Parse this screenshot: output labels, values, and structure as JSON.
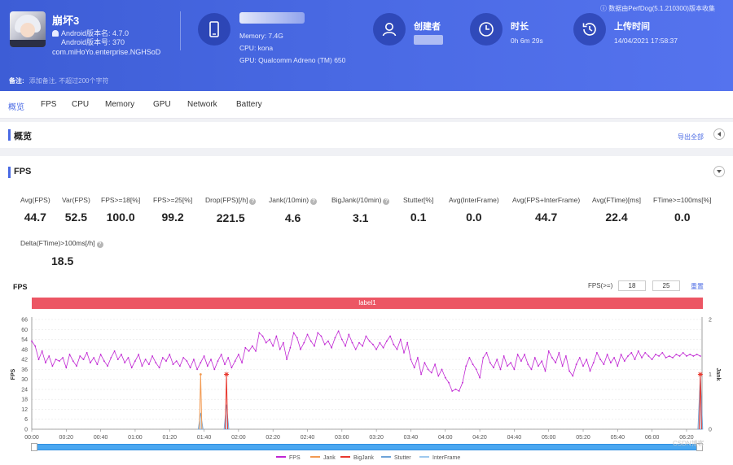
{
  "header": {
    "app": {
      "name": "崩坏3",
      "version_label": "Android版本名: 4.7.0",
      "build_label": "Android版本号: 370",
      "package": "com.miHoYo.enterprise.NGHSoD"
    },
    "device": {
      "memory": "Memory: 7.4G",
      "cpu": "CPU: kona",
      "gpu": "GPU: Qualcomm Adreno (TM) 650"
    },
    "creator": {
      "title": "创建者"
    },
    "duration": {
      "title": "时长",
      "value": "0h 6m 29s"
    },
    "upload": {
      "title": "上传时间",
      "value": "14/04/2021 17:58:37"
    },
    "perfdog_note": "数据由PerfDog(5.1.210300)版本收集",
    "remark_label": "备注:",
    "remark_placeholder": "添加备注, 不超过200个字符"
  },
  "tabs": [
    "概览",
    "FPS",
    "CPU",
    "Memory",
    "GPU",
    "Network",
    "Battery"
  ],
  "active_tab": 0,
  "overview": {
    "title": "概览",
    "export_label": "导出全部"
  },
  "fps_section": {
    "title": "FPS",
    "stats": [
      {
        "label": "Avg(FPS)",
        "value": "44.7",
        "help": false
      },
      {
        "label": "Var(FPS)",
        "value": "52.5",
        "help": false
      },
      {
        "label": "FPS>=18[%]",
        "value": "100.0",
        "help": false
      },
      {
        "label": "FPS>=25[%]",
        "value": "99.2",
        "help": false
      },
      {
        "label": "Drop(FPS)[/h]",
        "value": "221.5",
        "help": true
      },
      {
        "label": "Jank(/10min)",
        "value": "4.6",
        "help": true
      },
      {
        "label": "BigJank(/10min)",
        "value": "3.1",
        "help": true
      },
      {
        "label": "Stutter[%]",
        "value": "0.1",
        "help": false
      },
      {
        "label": "Avg(InterFrame)",
        "value": "0.0",
        "help": false
      },
      {
        "label": "Avg(FPS+InterFrame)",
        "value": "44.7",
        "help": false
      },
      {
        "label": "Avg(FTime)[ms]",
        "value": "22.4",
        "help": false
      },
      {
        "label": "FTime>=100ms[%]",
        "value": "0.0",
        "help": false
      },
      {
        "label": "Delta(FTime)>100ms[/h]",
        "value": "18.5",
        "help": true
      }
    ]
  },
  "chart_panel": {
    "title": "FPS",
    "threshold_label": "FPS(>=)",
    "threshold_1": "18",
    "threshold_2": "25",
    "reset_label": "重置",
    "label_bar": "label1",
    "watermark": "CSDN博客"
  },
  "chart_data": {
    "type": "line",
    "xlabel": "",
    "ylabel": "FPS",
    "y2label": "Jank",
    "ylim": [
      0,
      66
    ],
    "y2lim": [
      0,
      2
    ],
    "yticks": [
      0,
      6,
      12,
      18,
      24,
      30,
      36,
      42,
      48,
      54,
      60,
      66
    ],
    "y2ticks": [
      0,
      1,
      2
    ],
    "xlim_seconds": [
      0,
      389
    ],
    "xticks": [
      "00:00",
      "00:20",
      "00:40",
      "01:00",
      "01:20",
      "01:40",
      "02:00",
      "02:20",
      "02:40",
      "03:00",
      "03:20",
      "03:40",
      "04:00",
      "04:20",
      "04:40",
      "05:00",
      "05:20",
      "05:40",
      "06:00",
      "06:20"
    ],
    "legend": [
      "FPS",
      "Jank",
      "BigJank",
      "Stutter",
      "InterFrame"
    ],
    "colors": {
      "FPS": "#c026d3",
      "Jank": "#f29a52",
      "BigJank": "#e8382e",
      "Stutter": "#6da3d8",
      "InterFrame": "#9ec9ee"
    },
    "fps_series": [
      {
        "t": 0,
        "v": 53
      },
      {
        "t": 2,
        "v": 50
      },
      {
        "t": 4,
        "v": 42
      },
      {
        "t": 6,
        "v": 47
      },
      {
        "t": 8,
        "v": 40
      },
      {
        "t": 10,
        "v": 44
      },
      {
        "t": 12,
        "v": 38
      },
      {
        "t": 14,
        "v": 42
      },
      {
        "t": 16,
        "v": 41
      },
      {
        "t": 18,
        "v": 43
      },
      {
        "t": 20,
        "v": 37
      },
      {
        "t": 22,
        "v": 45
      },
      {
        "t": 24,
        "v": 41
      },
      {
        "t": 26,
        "v": 38
      },
      {
        "t": 28,
        "v": 44
      },
      {
        "t": 30,
        "v": 42
      },
      {
        "t": 32,
        "v": 46
      },
      {
        "t": 34,
        "v": 40
      },
      {
        "t": 36,
        "v": 43
      },
      {
        "t": 38,
        "v": 39
      },
      {
        "t": 40,
        "v": 45
      },
      {
        "t": 42,
        "v": 41
      },
      {
        "t": 44,
        "v": 38
      },
      {
        "t": 46,
        "v": 43
      },
      {
        "t": 48,
        "v": 47
      },
      {
        "t": 50,
        "v": 42
      },
      {
        "t": 52,
        "v": 45
      },
      {
        "t": 54,
        "v": 40
      },
      {
        "t": 56,
        "v": 43
      },
      {
        "t": 58,
        "v": 37
      },
      {
        "t": 60,
        "v": 41
      },
      {
        "t": 62,
        "v": 45
      },
      {
        "t": 64,
        "v": 38
      },
      {
        "t": 66,
        "v": 42
      },
      {
        "t": 68,
        "v": 39
      },
      {
        "t": 70,
        "v": 44
      },
      {
        "t": 72,
        "v": 40
      },
      {
        "t": 74,
        "v": 37
      },
      {
        "t": 76,
        "v": 43
      },
      {
        "t": 78,
        "v": 41
      },
      {
        "t": 80,
        "v": 45
      },
      {
        "t": 82,
        "v": 39
      },
      {
        "t": 84,
        "v": 41
      },
      {
        "t": 86,
        "v": 38
      },
      {
        "t": 88,
        "v": 43
      },
      {
        "t": 90,
        "v": 41
      },
      {
        "t": 92,
        "v": 37
      },
      {
        "t": 94,
        "v": 42
      },
      {
        "t": 96,
        "v": 36
      },
      {
        "t": 98,
        "v": 40
      },
      {
        "t": 100,
        "v": 44
      },
      {
        "t": 102,
        "v": 38
      },
      {
        "t": 104,
        "v": 42
      },
      {
        "t": 106,
        "v": 36
      },
      {
        "t": 108,
        "v": 41
      },
      {
        "t": 110,
        "v": 45
      },
      {
        "t": 112,
        "v": 39
      },
      {
        "t": 114,
        "v": 43
      },
      {
        "t": 116,
        "v": 37
      },
      {
        "t": 118,
        "v": 41
      },
      {
        "t": 120,
        "v": 45
      },
      {
        "t": 122,
        "v": 40
      },
      {
        "t": 124,
        "v": 49
      },
      {
        "t": 126,
        "v": 47
      },
      {
        "t": 128,
        "v": 50
      },
      {
        "t": 130,
        "v": 47
      },
      {
        "t": 132,
        "v": 58
      },
      {
        "t": 134,
        "v": 56
      },
      {
        "t": 136,
        "v": 52
      },
      {
        "t": 138,
        "v": 54
      },
      {
        "t": 140,
        "v": 50
      },
      {
        "t": 142,
        "v": 56
      },
      {
        "t": 144,
        "v": 48
      },
      {
        "t": 146,
        "v": 52
      },
      {
        "t": 148,
        "v": 42
      },
      {
        "t": 150,
        "v": 49
      },
      {
        "t": 152,
        "v": 58
      },
      {
        "t": 154,
        "v": 55
      },
      {
        "t": 156,
        "v": 48
      },
      {
        "t": 158,
        "v": 52
      },
      {
        "t": 160,
        "v": 57
      },
      {
        "t": 162,
        "v": 53
      },
      {
        "t": 164,
        "v": 50
      },
      {
        "t": 166,
        "v": 58
      },
      {
        "t": 168,
        "v": 56
      },
      {
        "t": 170,
        "v": 51
      },
      {
        "t": 172,
        "v": 53
      },
      {
        "t": 174,
        "v": 49
      },
      {
        "t": 176,
        "v": 55
      },
      {
        "t": 178,
        "v": 59
      },
      {
        "t": 180,
        "v": 54
      },
      {
        "t": 182,
        "v": 50
      },
      {
        "t": 184,
        "v": 57
      },
      {
        "t": 186,
        "v": 52
      },
      {
        "t": 188,
        "v": 48
      },
      {
        "t": 190,
        "v": 52
      },
      {
        "t": 192,
        "v": 50
      },
      {
        "t": 194,
        "v": 56
      },
      {
        "t": 196,
        "v": 53
      },
      {
        "t": 198,
        "v": 51
      },
      {
        "t": 200,
        "v": 48
      },
      {
        "t": 202,
        "v": 52
      },
      {
        "t": 204,
        "v": 49
      },
      {
        "t": 206,
        "v": 53
      },
      {
        "t": 208,
        "v": 56
      },
      {
        "t": 210,
        "v": 51
      },
      {
        "t": 212,
        "v": 48
      },
      {
        "t": 214,
        "v": 54
      },
      {
        "t": 216,
        "v": 46
      },
      {
        "t": 218,
        "v": 52
      },
      {
        "t": 220,
        "v": 42
      },
      {
        "t": 222,
        "v": 37
      },
      {
        "t": 224,
        "v": 43
      },
      {
        "t": 226,
        "v": 33
      },
      {
        "t": 228,
        "v": 40
      },
      {
        "t": 230,
        "v": 36
      },
      {
        "t": 232,
        "v": 34
      },
      {
        "t": 234,
        "v": 39
      },
      {
        "t": 236,
        "v": 32
      },
      {
        "t": 238,
        "v": 36
      },
      {
        "t": 240,
        "v": 31
      },
      {
        "t": 242,
        "v": 28
      },
      {
        "t": 244,
        "v": 23
      },
      {
        "t": 246,
        "v": 24
      },
      {
        "t": 248,
        "v": 23
      },
      {
        "t": 250,
        "v": 28
      },
      {
        "t": 252,
        "v": 38
      },
      {
        "t": 254,
        "v": 43
      },
      {
        "t": 256,
        "v": 39
      },
      {
        "t": 258,
        "v": 36
      },
      {
        "t": 260,
        "v": 31
      },
      {
        "t": 262,
        "v": 43
      },
      {
        "t": 264,
        "v": 46
      },
      {
        "t": 266,
        "v": 40
      },
      {
        "t": 268,
        "v": 37
      },
      {
        "t": 270,
        "v": 42
      },
      {
        "t": 272,
        "v": 36
      },
      {
        "t": 274,
        "v": 44
      },
      {
        "t": 276,
        "v": 38
      },
      {
        "t": 278,
        "v": 40
      },
      {
        "t": 280,
        "v": 36
      },
      {
        "t": 282,
        "v": 45
      },
      {
        "t": 284,
        "v": 41
      },
      {
        "t": 286,
        "v": 45
      },
      {
        "t": 288,
        "v": 39
      },
      {
        "t": 290,
        "v": 36
      },
      {
        "t": 292,
        "v": 43
      },
      {
        "t": 294,
        "v": 38
      },
      {
        "t": 296,
        "v": 41
      },
      {
        "t": 298,
        "v": 35
      },
      {
        "t": 300,
        "v": 47
      },
      {
        "t": 302,
        "v": 43
      },
      {
        "t": 304,
        "v": 40
      },
      {
        "t": 306,
        "v": 46
      },
      {
        "t": 308,
        "v": 38
      },
      {
        "t": 310,
        "v": 44
      },
      {
        "t": 312,
        "v": 35
      },
      {
        "t": 314,
        "v": 32
      },
      {
        "t": 316,
        "v": 39
      },
      {
        "t": 318,
        "v": 43
      },
      {
        "t": 320,
        "v": 38
      },
      {
        "t": 322,
        "v": 42
      },
      {
        "t": 324,
        "v": 35
      },
      {
        "t": 326,
        "v": 40
      },
      {
        "t": 328,
        "v": 46
      },
      {
        "t": 330,
        "v": 42
      },
      {
        "t": 332,
        "v": 39
      },
      {
        "t": 334,
        "v": 45
      },
      {
        "t": 336,
        "v": 40
      },
      {
        "t": 338,
        "v": 43
      },
      {
        "t": 340,
        "v": 38
      },
      {
        "t": 342,
        "v": 45
      },
      {
        "t": 344,
        "v": 41
      },
      {
        "t": 346,
        "v": 44
      },
      {
        "t": 348,
        "v": 46
      },
      {
        "t": 350,
        "v": 42
      },
      {
        "t": 352,
        "v": 47
      },
      {
        "t": 354,
        "v": 43
      },
      {
        "t": 356,
        "v": 46
      },
      {
        "t": 358,
        "v": 44
      },
      {
        "t": 360,
        "v": 42
      },
      {
        "t": 362,
        "v": 45
      },
      {
        "t": 364,
        "v": 44
      },
      {
        "t": 366,
        "v": 46
      },
      {
        "t": 368,
        "v": 43
      },
      {
        "t": 370,
        "v": 44
      },
      {
        "t": 372,
        "v": 43
      },
      {
        "t": 374,
        "v": 45
      },
      {
        "t": 376,
        "v": 44
      },
      {
        "t": 378,
        "v": 46
      },
      {
        "t": 380,
        "v": 44
      },
      {
        "t": 382,
        "v": 45
      },
      {
        "t": 384,
        "v": 44
      },
      {
        "t": 386,
        "v": 45
      },
      {
        "t": 388,
        "v": 44
      }
    ],
    "jank_events": [
      {
        "t": 98,
        "v": 1
      }
    ],
    "bigjank_events": [
      {
        "t": 113,
        "v": 1
      },
      {
        "t": 388,
        "v": 1
      }
    ],
    "stutter_events": [
      {
        "t": 98,
        "v": 0.3
      },
      {
        "t": 113,
        "v": 0.45
      },
      {
        "t": 388,
        "v": 1
      }
    ]
  }
}
